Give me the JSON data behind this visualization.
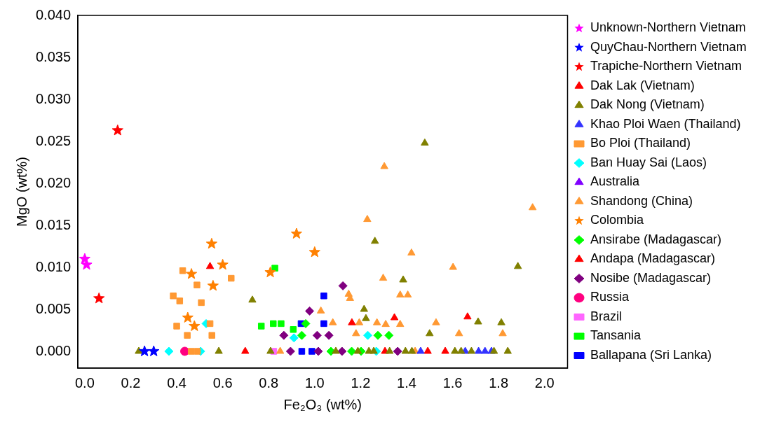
{
  "chart_data": {
    "type": "scatter",
    "xlabel": "Fe₂O₃ (wt%)",
    "ylabel": "MgO (wt%)",
    "xlim": [
      -0.03,
      2.1
    ],
    "ylim": [
      -0.002,
      0.04
    ],
    "xticks": [
      {
        "value": 0,
        "label": "0.0"
      },
      {
        "value": 0.2,
        "label": "0.2"
      },
      {
        "value": 0.4,
        "label": "0.4"
      },
      {
        "value": 0.6,
        "label": "0.6"
      },
      {
        "value": 0.8,
        "label": "0.8"
      },
      {
        "value": 1,
        "label": "1.0"
      },
      {
        "value": 1.2,
        "label": "1.2"
      },
      {
        "value": 1.4,
        "label": "1.4"
      },
      {
        "value": 1.6,
        "label": "1.6"
      },
      {
        "value": 1.8,
        "label": "1.8"
      },
      {
        "value": 2,
        "label": "2.0"
      }
    ],
    "yticks": [
      {
        "value": 0,
        "label": "0.000"
      },
      {
        "value": 0.005,
        "label": "0.005"
      },
      {
        "value": 0.01,
        "label": "0.010"
      },
      {
        "value": 0.015,
        "label": "0.015"
      },
      {
        "value": 0.02,
        "label": "0.020"
      },
      {
        "value": 0.025,
        "label": "0.025"
      },
      {
        "value": 0.03,
        "label": "0.030"
      },
      {
        "value": 0.035,
        "label": "0.035"
      },
      {
        "value": 0.04,
        "label": "0.040"
      }
    ],
    "grid": false,
    "legend": "right",
    "series": [
      {
        "name": "Unknown-Northern Vietnam",
        "color": "#ff00ff",
        "marker": "star",
        "x": [
          0.0,
          0.008
        ],
        "values": [
          0.011,
          0.0103
        ]
      },
      {
        "name": "QuyChau-Northern Vietnam",
        "color": "#0000ff",
        "marker": "star",
        "x": [
          0.26,
          0.3
        ],
        "values": [
          0,
          0
        ]
      },
      {
        "name": "Trapiche-Northern Vietnam",
        "color": "#ff0000",
        "marker": "star",
        "x": [
          0.143,
          0.062
        ],
        "values": [
          0.0263,
          0.0063
        ]
      },
      {
        "name": "Dak Lak (Vietnam)",
        "color": "#ff0000",
        "marker": "triangle",
        "x": [
          0.545,
          1.162,
          1.665
        ],
        "values": [
          0.0101,
          0.0034,
          0.0041
        ]
      },
      {
        "name": "Dak Nong (Vietnam)",
        "color": "#808000",
        "marker": "triangle",
        "x": [
          0.729,
          1.479,
          1.262,
          1.884,
          1.385,
          1.215,
          1.223,
          1.711,
          1.812,
          1.5,
          0.235,
          0.583,
          0.808,
          1.092,
          1.188,
          1.236,
          1.257,
          1.326,
          1.395,
          1.423,
          1.61,
          1.637,
          1.682,
          1.78,
          1.84
        ],
        "values": [
          0.0061,
          0.0248,
          0.0131,
          0.0101,
          0.0085,
          0.005,
          0.0039,
          0.0035,
          0.0034,
          0.0021,
          0,
          0,
          0,
          0,
          0,
          0,
          0,
          0,
          0,
          0,
          0,
          0,
          0,
          0,
          0
        ]
      },
      {
        "name": "Khao Ploi Waen (Thailand)",
        "color": "#3333ff",
        "marker": "triangle",
        "x": [
          1.461,
          1.655,
          1.713,
          1.741,
          1.769
        ],
        "values": [
          0,
          0,
          0,
          0,
          0
        ]
      },
      {
        "name": "Bo Ploi (Thailand)",
        "color": "#ff9933",
        "marker": "square",
        "x": [
          0.426,
          0.637,
          0.488,
          0.385,
          0.413,
          0.507,
          0.4,
          0.545,
          0.446,
          0.553,
          0.463,
          0.49
        ],
        "values": [
          0.0096,
          0.0087,
          0.0079,
          0.0066,
          0.006,
          0.0058,
          0.003,
          0.0033,
          0.0019,
          0.0019,
          0,
          0
        ]
      },
      {
        "name": "Ban Huay Sai (Laos)",
        "color": "#00ffff",
        "marker": "diamond",
        "x": [
          0.528,
          0.91,
          1.231,
          0.366,
          0.504,
          1.268
        ],
        "values": [
          0.0033,
          0.0016,
          0.0019,
          0,
          0,
          0
        ]
      },
      {
        "name": "Australia",
        "color": "#8000ff",
        "marker": "triangle"
      },
      {
        "name": "Shandong (China)",
        "color": "#ff9933",
        "marker": "triangle",
        "x": [
          1.303,
          1.948,
          1.229,
          1.421,
          1.602,
          1.298,
          1.148,
          1.154,
          1.372,
          1.405,
          1.027,
          1.079,
          1.194,
          1.271,
          1.309,
          1.372,
          1.528,
          1.18,
          1.628,
          1.818,
          0.85,
          1.437
        ],
        "values": [
          0.022,
          0.0171,
          0.0157,
          0.0117,
          0.01,
          0.0087,
          0.0068,
          0.0063,
          0.0067,
          0.0067,
          0.0048,
          0.0034,
          0.0034,
          0.0034,
          0.0032,
          0.0032,
          0.0034,
          0.0021,
          0.0021,
          0.0021,
          0,
          0
        ]
      },
      {
        "name": "Colombia",
        "color": "#ff8000",
        "marker": "star",
        "x": [
          0.552,
          0.921,
          1.0,
          0.6,
          0.464,
          0.807,
          0.558,
          0.448,
          0.477
        ],
        "values": [
          0.0128,
          0.014,
          0.0118,
          0.0103,
          0.0092,
          0.0094,
          0.0078,
          0.004,
          0.003
        ]
      },
      {
        "name": "Ansirabe (Madagascar)",
        "color": "#00ff00",
        "marker": "diamond",
        "x": [
          0.961,
          0.944,
          1.275,
          1.323,
          1.071,
          1.161,
          1.202
        ],
        "values": [
          0.0033,
          0.0019,
          0.0019,
          0.0019,
          0,
          0,
          0
        ]
      },
      {
        "name": "Andapa (Madagascar)",
        "color": "#ff0000",
        "marker": "triangle",
        "x": [
          1.347,
          0.698,
          1.306,
          1.492,
          1.568
        ],
        "values": [
          0.004,
          0,
          0,
          0,
          0
        ]
      },
      {
        "name": "Nosibe (Madagascar)",
        "color": "#800080",
        "marker": "diamond",
        "x": [
          0.978,
          0.866,
          1.011,
          1.062,
          1.123,
          0.895,
          1.016,
          1.119,
          1.361
        ],
        "values": [
          0.0048,
          0.0019,
          0.0019,
          0.0019,
          0.0078,
          0,
          0,
          0,
          0
        ]
      },
      {
        "name": "Russia",
        "color": "#ff0080",
        "marker": "circle",
        "x": [
          0.435
        ],
        "values": [
          0
        ]
      },
      {
        "name": "Brazil",
        "color": "#ff66ff",
        "marker": "square",
        "x": [
          0.822
        ],
        "values": [
          0
        ]
      },
      {
        "name": "Tansania",
        "color": "#00ff00",
        "marker": "square",
        "x": [
          0.827,
          0.768,
          0.82,
          0.854,
          0.907
        ],
        "values": [
          0.0099,
          0.003,
          0.0033,
          0.0033,
          0.0026
        ]
      },
      {
        "name": "Ballapana (Sri Lanka)",
        "color": "#0000ff",
        "marker": "square",
        "x": [
          1.04,
          0.941,
          1.04,
          0.944,
          0.988
        ],
        "values": [
          0.0066,
          0.0033,
          0.0033,
          0,
          0
        ]
      }
    ]
  }
}
